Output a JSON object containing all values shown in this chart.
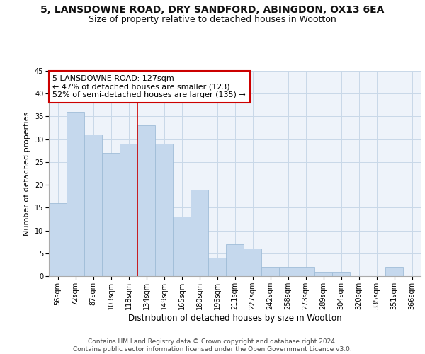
{
  "title1": "5, LANSDOWNE ROAD, DRY SANDFORD, ABINGDON, OX13 6EA",
  "title2": "Size of property relative to detached houses in Wootton",
  "xlabel": "Distribution of detached houses by size in Wootton",
  "ylabel": "Number of detached properties",
  "categories": [
    "56sqm",
    "72sqm",
    "87sqm",
    "103sqm",
    "118sqm",
    "134sqm",
    "149sqm",
    "165sqm",
    "180sqm",
    "196sqm",
    "211sqm",
    "227sqm",
    "242sqm",
    "258sqm",
    "273sqm",
    "289sqm",
    "304sqm",
    "320sqm",
    "335sqm",
    "351sqm",
    "366sqm"
  ],
  "values": [
    16,
    36,
    31,
    27,
    29,
    33,
    29,
    13,
    19,
    4,
    7,
    6,
    2,
    2,
    2,
    1,
    1,
    0,
    0,
    2,
    0
  ],
  "bar_color": "#c5d8ed",
  "bar_edgecolor": "#a0bdd8",
  "grid_color": "#c8d8e8",
  "background_color": "#eef3fa",
  "annotation_text": "5 LANSDOWNE ROAD: 127sqm\n← 47% of detached houses are smaller (123)\n52% of semi-detached houses are larger (135) →",
  "annotation_box_color": "#ffffff",
  "annotation_box_edgecolor": "#cc0000",
  "footer": "Contains HM Land Registry data © Crown copyright and database right 2024.\nContains public sector information licensed under the Open Government Licence v3.0.",
  "ylim": [
    0,
    45
  ],
  "title1_fontsize": 10,
  "title2_fontsize": 9,
  "xlabel_fontsize": 8.5,
  "ylabel_fontsize": 8,
  "tick_fontsize": 7,
  "annotation_fontsize": 8,
  "footer_fontsize": 6.5
}
